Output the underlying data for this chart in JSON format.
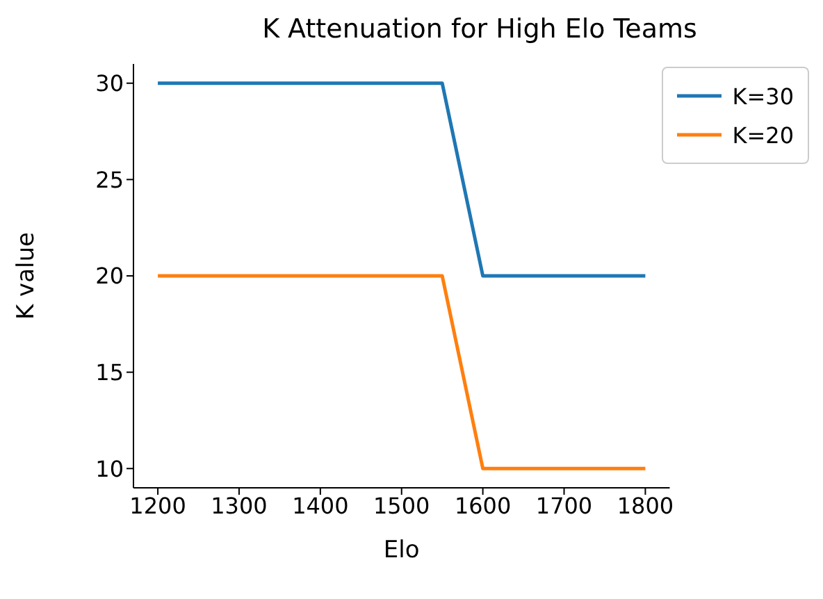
{
  "chart_data": {
    "type": "line",
    "title": "K Attenuation for High Elo Teams",
    "xlabel": "Elo",
    "ylabel": "K value",
    "x": [
      1200,
      1550,
      1600,
      1800
    ],
    "series": [
      {
        "name": "K=30",
        "color": "#1f77b4",
        "values": [
          30,
          30,
          20,
          20
        ]
      },
      {
        "name": "K=20",
        "color": "#ff7f0e",
        "values": [
          20,
          20,
          10,
          10
        ]
      }
    ],
    "xlim": [
      1170,
      1830
    ],
    "xticks": [
      1200,
      1300,
      1400,
      1500,
      1600,
      1700,
      1800
    ],
    "ylim": [
      9,
      31
    ],
    "yticks": [
      10,
      15,
      20,
      25,
      30
    ],
    "grid": false,
    "legend": "top right",
    "marker": "none",
    "line_style": "solid"
  }
}
